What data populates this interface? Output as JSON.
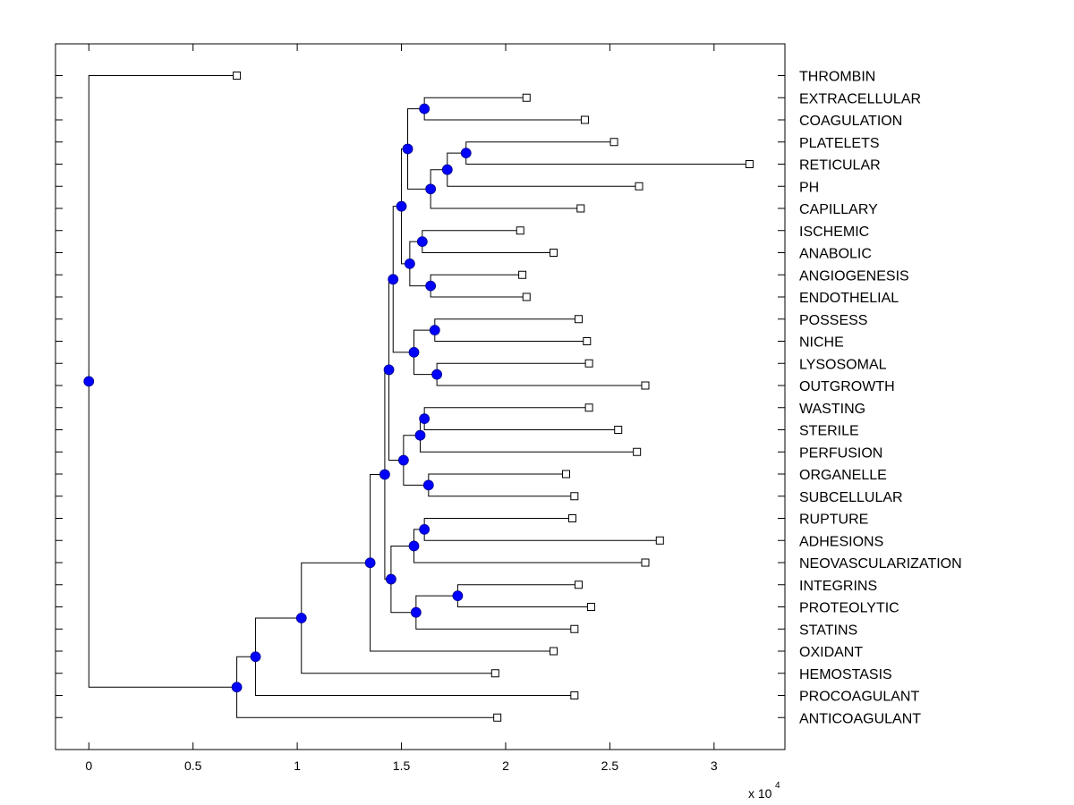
{
  "chart_data": {
    "type": "dendrogram",
    "title": "",
    "xlabel": "",
    "ylabel": "",
    "x_multiplier_label": "x 10",
    "x_multiplier_exponent": "4",
    "xlim": [
      -0.16,
      3.34
    ],
    "x_ticks": [
      0,
      0.5,
      1,
      1.5,
      2,
      2.5,
      3
    ],
    "x_tick_labels": [
      "0",
      "0.5",
      "1",
      "1.5",
      "2",
      "2.5",
      "3"
    ],
    "grid": false,
    "orientation": "left-to-right",
    "colors": {
      "node": "#0000ff",
      "line": "#000000",
      "leaf_fill": "#ffffff"
    },
    "leaves": [
      {
        "id": "L0",
        "label": "THROMBIN",
        "value": 0.71
      },
      {
        "id": "L1",
        "label": "EXTRACELLULAR",
        "value": 2.1
      },
      {
        "id": "L2",
        "label": "COAGULATION",
        "value": 2.38
      },
      {
        "id": "L3",
        "label": "PLATELETS",
        "value": 2.52
      },
      {
        "id": "L4",
        "label": "RETICULAR",
        "value": 3.17
      },
      {
        "id": "L5",
        "label": "PH",
        "value": 2.64
      },
      {
        "id": "L6",
        "label": "CAPILLARY",
        "value": 2.36
      },
      {
        "id": "L7",
        "label": "ISCHEMIC",
        "value": 2.07
      },
      {
        "id": "L8",
        "label": "ANABOLIC",
        "value": 2.23
      },
      {
        "id": "L9",
        "label": "ANGIOGENESIS",
        "value": 2.08
      },
      {
        "id": "L10",
        "label": "ENDOTHELIAL",
        "value": 2.1
      },
      {
        "id": "L11",
        "label": "POSSESS",
        "value": 2.35
      },
      {
        "id": "L12",
        "label": "NICHE",
        "value": 2.39
      },
      {
        "id": "L13",
        "label": "LYSOSOMAL",
        "value": 2.4
      },
      {
        "id": "L14",
        "label": "OUTGROWTH",
        "value": 2.67
      },
      {
        "id": "L15",
        "label": "WASTING",
        "value": 2.4
      },
      {
        "id": "L16",
        "label": "STERILE",
        "value": 2.54
      },
      {
        "id": "L17",
        "label": "PERFUSION",
        "value": 2.63
      },
      {
        "id": "L18",
        "label": "ORGANELLE",
        "value": 2.29
      },
      {
        "id": "L19",
        "label": "SUBCELLULAR",
        "value": 2.33
      },
      {
        "id": "L20",
        "label": "RUPTURE",
        "value": 2.32
      },
      {
        "id": "L21",
        "label": "ADHESIONS",
        "value": 2.74
      },
      {
        "id": "L22",
        "label": "NEOVASCULARIZATION",
        "value": 2.67
      },
      {
        "id": "L23",
        "label": "INTEGRINS",
        "value": 2.35
      },
      {
        "id": "L24",
        "label": "PROTEOLYTIC",
        "value": 2.41
      },
      {
        "id": "L25",
        "label": "STATINS",
        "value": 2.33
      },
      {
        "id": "L26",
        "label": "OXIDANT",
        "value": 2.23
      },
      {
        "id": "L27",
        "label": "HEMOSTASIS",
        "value": 1.95
      },
      {
        "id": "L28",
        "label": "PROCOAGULANT",
        "value": 2.33
      },
      {
        "id": "L29",
        "label": "ANTICOAGULANT",
        "value": 1.96
      }
    ],
    "nodes": [
      {
        "id": "N1",
        "value": 1.61,
        "children": [
          "L1",
          "L2"
        ]
      },
      {
        "id": "N2",
        "value": 1.81,
        "children": [
          "L3",
          "L4"
        ]
      },
      {
        "id": "N3",
        "value": 1.72,
        "children": [
          "N2",
          "L5"
        ]
      },
      {
        "id": "N4",
        "value": 1.64,
        "children": [
          "N3",
          "L6"
        ]
      },
      {
        "id": "N5",
        "value": 1.53,
        "children": [
          "N1",
          "N4"
        ]
      },
      {
        "id": "N6",
        "value": 1.6,
        "children": [
          "L7",
          "L8"
        ]
      },
      {
        "id": "N7",
        "value": 1.64,
        "children": [
          "L9",
          "L10"
        ]
      },
      {
        "id": "N8",
        "value": 1.54,
        "children": [
          "N6",
          "N7"
        ]
      },
      {
        "id": "N9",
        "value": 1.5,
        "children": [
          "N5",
          "N8"
        ]
      },
      {
        "id": "N10",
        "value": 1.66,
        "children": [
          "L11",
          "L12"
        ]
      },
      {
        "id": "N11",
        "value": 1.67,
        "children": [
          "L13",
          "L14"
        ]
      },
      {
        "id": "N12",
        "value": 1.56,
        "children": [
          "N10",
          "N11"
        ]
      },
      {
        "id": "N13",
        "value": 1.46,
        "children": [
          "N9",
          "N12"
        ]
      },
      {
        "id": "N14",
        "value": 1.61,
        "children": [
          "L15",
          "L16"
        ]
      },
      {
        "id": "N15",
        "value": 1.59,
        "children": [
          "N14",
          "L17"
        ]
      },
      {
        "id": "N16",
        "value": 1.63,
        "children": [
          "L18",
          "L19"
        ]
      },
      {
        "id": "N17",
        "value": 1.51,
        "children": [
          "N15",
          "N16"
        ]
      },
      {
        "id": "N18",
        "value": 1.44,
        "children": [
          "N13",
          "N17"
        ]
      },
      {
        "id": "N19",
        "value": 1.61,
        "children": [
          "L20",
          "L21"
        ]
      },
      {
        "id": "N20",
        "value": 1.56,
        "children": [
          "N19",
          "L22"
        ]
      },
      {
        "id": "N21",
        "value": 1.77,
        "children": [
          "L23",
          "L24"
        ]
      },
      {
        "id": "N22",
        "value": 1.57,
        "children": [
          "N21",
          "L25"
        ]
      },
      {
        "id": "N23",
        "value": 1.45,
        "children": [
          "N20",
          "N22"
        ]
      },
      {
        "id": "N24",
        "value": 1.42,
        "children": [
          "N18",
          "N23"
        ]
      },
      {
        "id": "N25",
        "value": 1.35,
        "children": [
          "N24",
          "L26"
        ]
      },
      {
        "id": "N26",
        "value": 1.02,
        "children": [
          "N25",
          "L27"
        ]
      },
      {
        "id": "N27",
        "value": 0.8,
        "children": [
          "N26",
          "L28"
        ]
      },
      {
        "id": "N28",
        "value": 0.71,
        "children": [
          "N27",
          "L29"
        ]
      },
      {
        "id": "N29",
        "value": 0.0,
        "children": [
          "L0",
          "N28"
        ]
      }
    ],
    "root": "N29"
  }
}
